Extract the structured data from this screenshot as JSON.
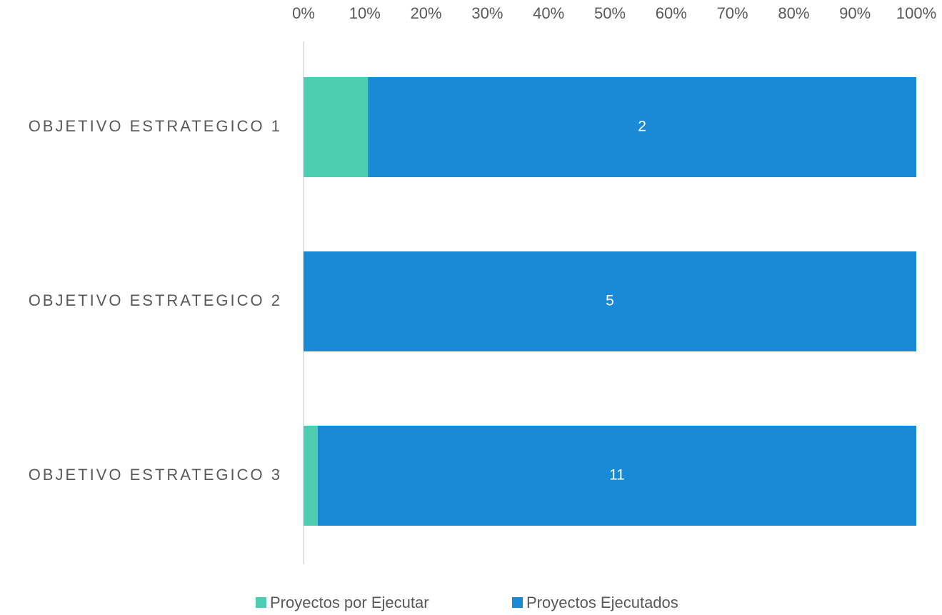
{
  "chart_data": {
    "type": "stacked_barh_percent",
    "categories": [
      "OBJETIVO ESTRATEGICO 1",
      "OBJETIVO ESTRATEGICO 2",
      "OBJETIVO ESTRATEGICO 3"
    ],
    "series": [
      {
        "name": "Proyectos por Ejecutar",
        "color": "#4ecdb0",
        "values": [
          10.5,
          0,
          2.3
        ]
      },
      {
        "name": "Proyectos Ejecutados",
        "color": "#1b8ad6",
        "values": [
          89.5,
          100,
          97.7
        ],
        "data_labels": [
          "2",
          "5",
          "11"
        ]
      }
    ],
    "xlim": [
      0,
      100
    ],
    "xticks": [
      {
        "value": 0,
        "label": "0%"
      },
      {
        "value": 10,
        "label": "10%"
      },
      {
        "value": 20,
        "label": "20%"
      },
      {
        "value": 30,
        "label": "30%"
      },
      {
        "value": 40,
        "label": "40%"
      },
      {
        "value": 50,
        "label": "50%"
      },
      {
        "value": 60,
        "label": "60%"
      },
      {
        "value": 70,
        "label": "70%"
      },
      {
        "value": 80,
        "label": "80%"
      },
      {
        "value": 90,
        "label": "90%"
      },
      {
        "value": 100,
        "label": "100%"
      }
    ],
    "legend": "bottom"
  }
}
